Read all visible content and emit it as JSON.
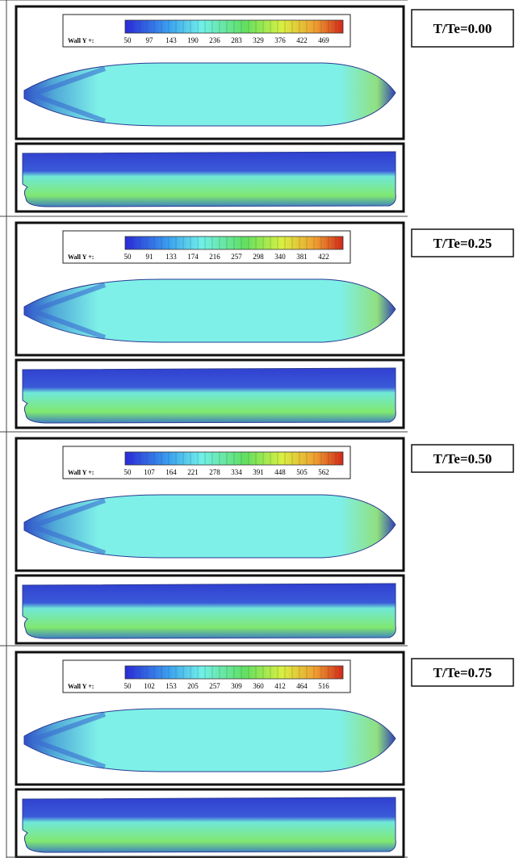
{
  "rows": [
    {
      "label": "T/Te=0.00",
      "legend": {
        "title": "Wall Y +:",
        "ticks": [
          50,
          97,
          143,
          190,
          236,
          283,
          329,
          376,
          422,
          469
        ]
      }
    },
    {
      "label": "T/Te=0.25",
      "legend": {
        "title": "Wall Y +:",
        "ticks": [
          50,
          91,
          133,
          174,
          216,
          257,
          298,
          340,
          381,
          422
        ]
      }
    },
    {
      "label": "T/Te=0.50",
      "legend": {
        "title": "Wall Y +:",
        "ticks": [
          50,
          107,
          164,
          221,
          278,
          334,
          391,
          448,
          505,
          562
        ]
      }
    },
    {
      "label": "T/Te=0.75",
      "legend": {
        "title": "Wall Y +:",
        "ticks": [
          50,
          102,
          153,
          205,
          257,
          309,
          360,
          412,
          464,
          516
        ]
      }
    }
  ]
}
